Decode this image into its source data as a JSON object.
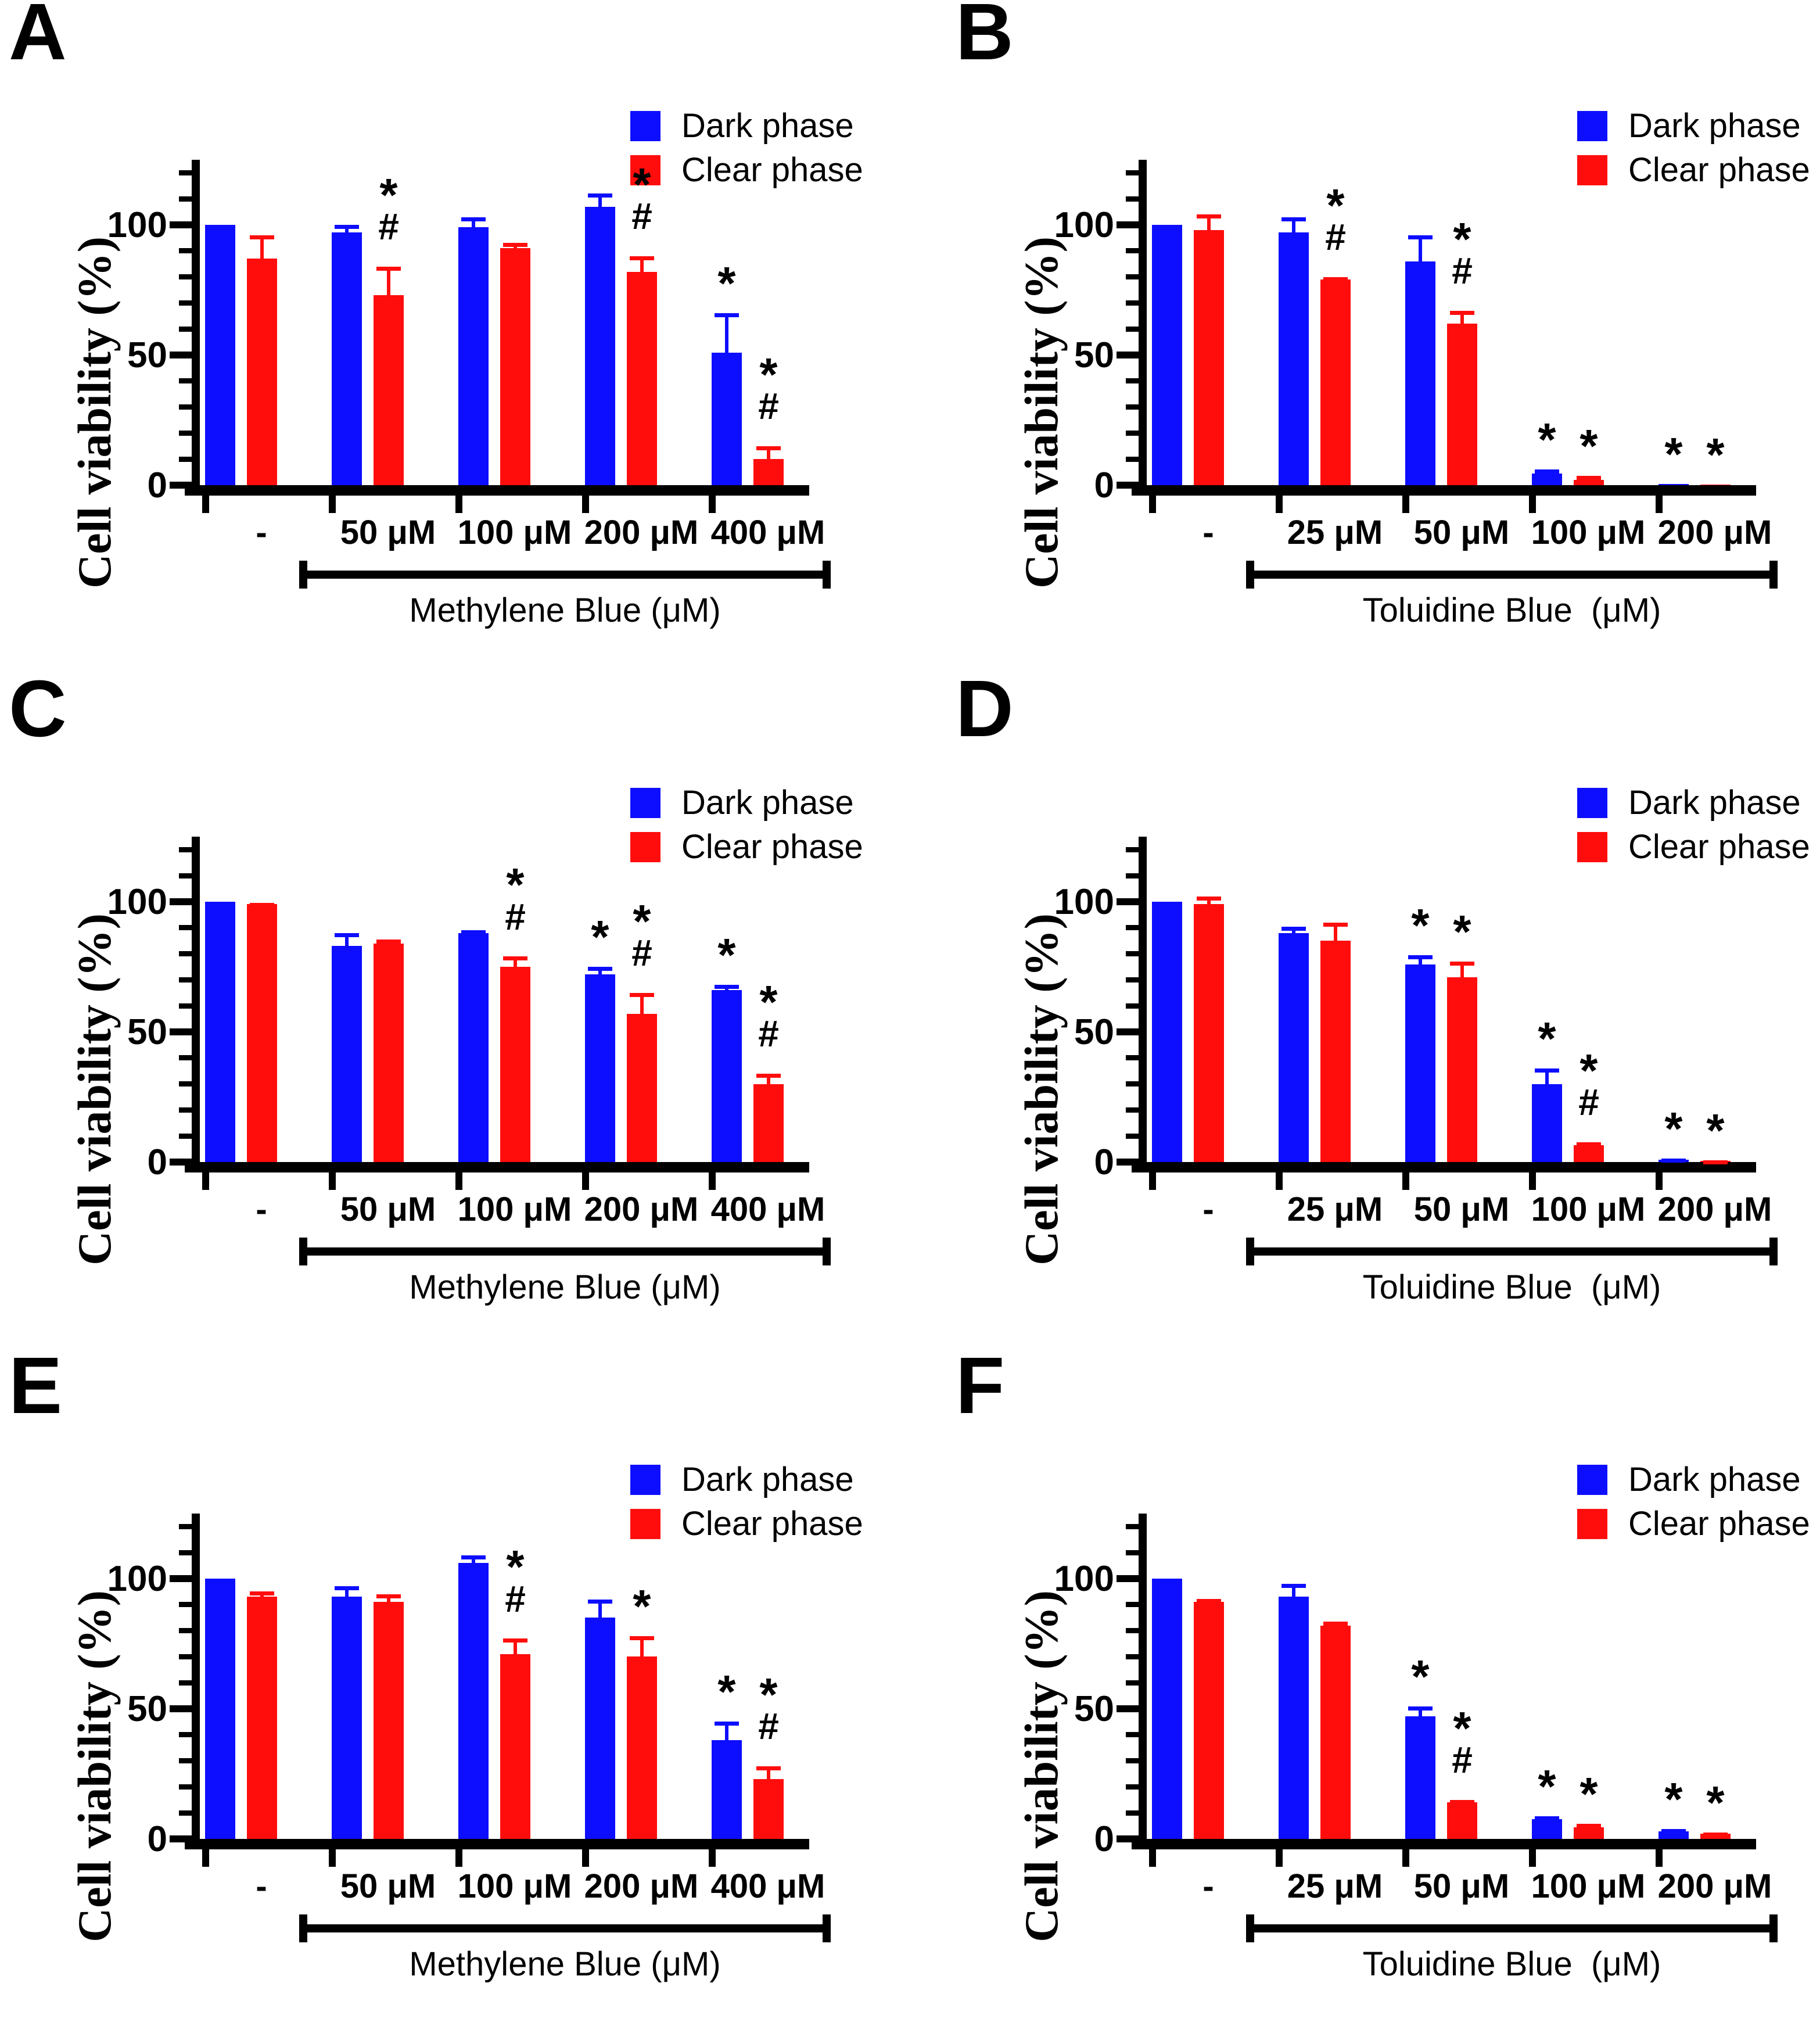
{
  "figure": {
    "y_axis_label": "Cell viability (%)",
    "y_ticks": [
      0,
      50,
      100
    ],
    "ylim": [
      0,
      125
    ],
    "legend": {
      "dark_label": "Dark phase",
      "clear_label": "Clear phase"
    },
    "colors": {
      "dark": "#0D0DFF",
      "clear": "#FF0D0D",
      "axis": "#000000",
      "background": "#FFFFFF"
    }
  },
  "chart_data": [
    {
      "type": "bar",
      "panel": "A",
      "title_letter": "A",
      "ylabel": "Cell viability (%)",
      "ylim": [
        0,
        125
      ],
      "grid": false,
      "legend_position": "top-right",
      "categories": [
        "-",
        "50 μM",
        "100 μM",
        "200 μM",
        "400 μM"
      ],
      "x_group_label": "Methylene Blue (μM)",
      "series": [
        {
          "name": "Dark phase",
          "values": [
            100,
            97,
            99,
            107,
            51
          ],
          "errors": [
            0,
            3,
            4,
            5,
            15
          ],
          "annotations": [
            "",
            "",
            "",
            "",
            "*"
          ]
        },
        {
          "name": "Clear phase",
          "values": [
            87,
            73,
            91,
            82,
            10
          ],
          "errors": [
            9,
            11,
            2,
            6,
            5
          ],
          "annotations": [
            "",
            "*#",
            "",
            "*#",
            "*#"
          ]
        }
      ]
    },
    {
      "type": "bar",
      "panel": "B",
      "title_letter": "B",
      "ylabel": "Cell viability (%)",
      "ylim": [
        0,
        125
      ],
      "grid": false,
      "legend_position": "top-right",
      "categories": [
        "-",
        "25 μM",
        "50 μM",
        "100 μM",
        "200 μM"
      ],
      "x_group_label": "Toluidine Blue  (μM)",
      "series": [
        {
          "name": "Dark phase",
          "values": [
            100,
            97,
            86,
            4.5,
            0.5
          ],
          "errors": [
            0,
            6,
            10,
            1.5,
            0
          ],
          "annotations": [
            "",
            "",
            "",
            "*",
            "*"
          ]
        },
        {
          "name": "Clear phase",
          "values": [
            98,
            79,
            62,
            2,
            0.3
          ],
          "errors": [
            6,
            1,
            5,
            1.5,
            0
          ],
          "annotations": [
            "",
            "*#",
            "*#",
            "*",
            "*"
          ]
        }
      ]
    },
    {
      "type": "bar",
      "panel": "C",
      "title_letter": "C",
      "ylabel": "Cell viability (%)",
      "ylim": [
        0,
        125
      ],
      "grid": false,
      "legend_position": "top-right",
      "categories": [
        "-",
        "50 μM",
        "100 μM",
        "200 μM",
        "400 μM"
      ],
      "x_group_label": "Methylene Blue (μM)",
      "series": [
        {
          "name": "Dark phase",
          "values": [
            100,
            83,
            88,
            72,
            66
          ],
          "errors": [
            0,
            5,
            1,
            3,
            2
          ],
          "annotations": [
            "",
            "",
            "",
            "*",
            "*"
          ]
        },
        {
          "name": "Clear phase",
          "values": [
            99,
            84,
            75,
            57,
            30
          ],
          "errors": [
            0.5,
            1.5,
            4,
            8,
            4
          ],
          "annotations": [
            "",
            "",
            "*#",
            "*#",
            "*#"
          ]
        }
      ]
    },
    {
      "type": "bar",
      "panel": "D",
      "title_letter": "D",
      "ylabel": "Cell viability (%)",
      "ylim": [
        0,
        125
      ],
      "grid": false,
      "legend_position": "top-right",
      "categories": [
        "-",
        "25 μM",
        "50 μM",
        "100 μM",
        "200 μM"
      ],
      "x_group_label": "Toluidine Blue  (μM)",
      "series": [
        {
          "name": "Dark phase",
          "values": [
            100,
            88,
            76,
            30,
            1
          ],
          "errors": [
            0,
            2.5,
            3.5,
            6,
            0.4
          ],
          "annotations": [
            "",
            "",
            "*",
            "*",
            "*"
          ]
        },
        {
          "name": "Clear phase",
          "values": [
            99,
            85,
            71,
            6.5,
            0.4
          ],
          "errors": [
            3,
            7,
            6,
            1.2,
            0.2
          ],
          "annotations": [
            "",
            "",
            "*",
            "*#",
            "*"
          ]
        }
      ]
    },
    {
      "type": "bar",
      "panel": "E",
      "title_letter": "E",
      "ylabel": "Cell viability (%)",
      "ylim": [
        0,
        125
      ],
      "grid": false,
      "legend_position": "top-right",
      "categories": [
        "-",
        "50 μM",
        "100 μM",
        "200 μM",
        "400 μM"
      ],
      "x_group_label": "Methylene Blue (μM)",
      "series": [
        {
          "name": "Dark phase",
          "values": [
            100,
            93,
            106,
            85,
            38
          ],
          "errors": [
            0,
            4,
            3,
            7,
            7
          ],
          "annotations": [
            "",
            "",
            "",
            "",
            "*"
          ]
        },
        {
          "name": "Clear phase",
          "values": [
            93,
            91,
            71,
            70,
            23
          ],
          "errors": [
            2,
            3,
            6,
            8,
            5
          ],
          "annotations": [
            "",
            "",
            "*#",
            "*",
            "*#"
          ]
        }
      ]
    },
    {
      "type": "bar",
      "panel": "F",
      "title_letter": "F",
      "ylabel": "Cell viability (%)",
      "ylim": [
        0,
        125
      ],
      "grid": false,
      "legend_position": "top-right",
      "categories": [
        "-",
        "25 μM",
        "50 μM",
        "100 μM",
        "200 μM"
      ],
      "x_group_label": "Toluidine Blue  (μM)",
      "series": [
        {
          "name": "Dark phase",
          "values": [
            100,
            93,
            47,
            7.5,
            3
          ],
          "errors": [
            0,
            5,
            4,
            1.2,
            0.7
          ],
          "annotations": [
            "",
            "",
            "*",
            "*",
            "*"
          ]
        },
        {
          "name": "Clear phase",
          "values": [
            91,
            82,
            14,
            4.5,
            2
          ],
          "errors": [
            1.2,
            1.5,
            1,
            1.2,
            0.5
          ],
          "annotations": [
            "",
            "",
            "*#",
            "*",
            "*"
          ]
        }
      ]
    }
  ]
}
